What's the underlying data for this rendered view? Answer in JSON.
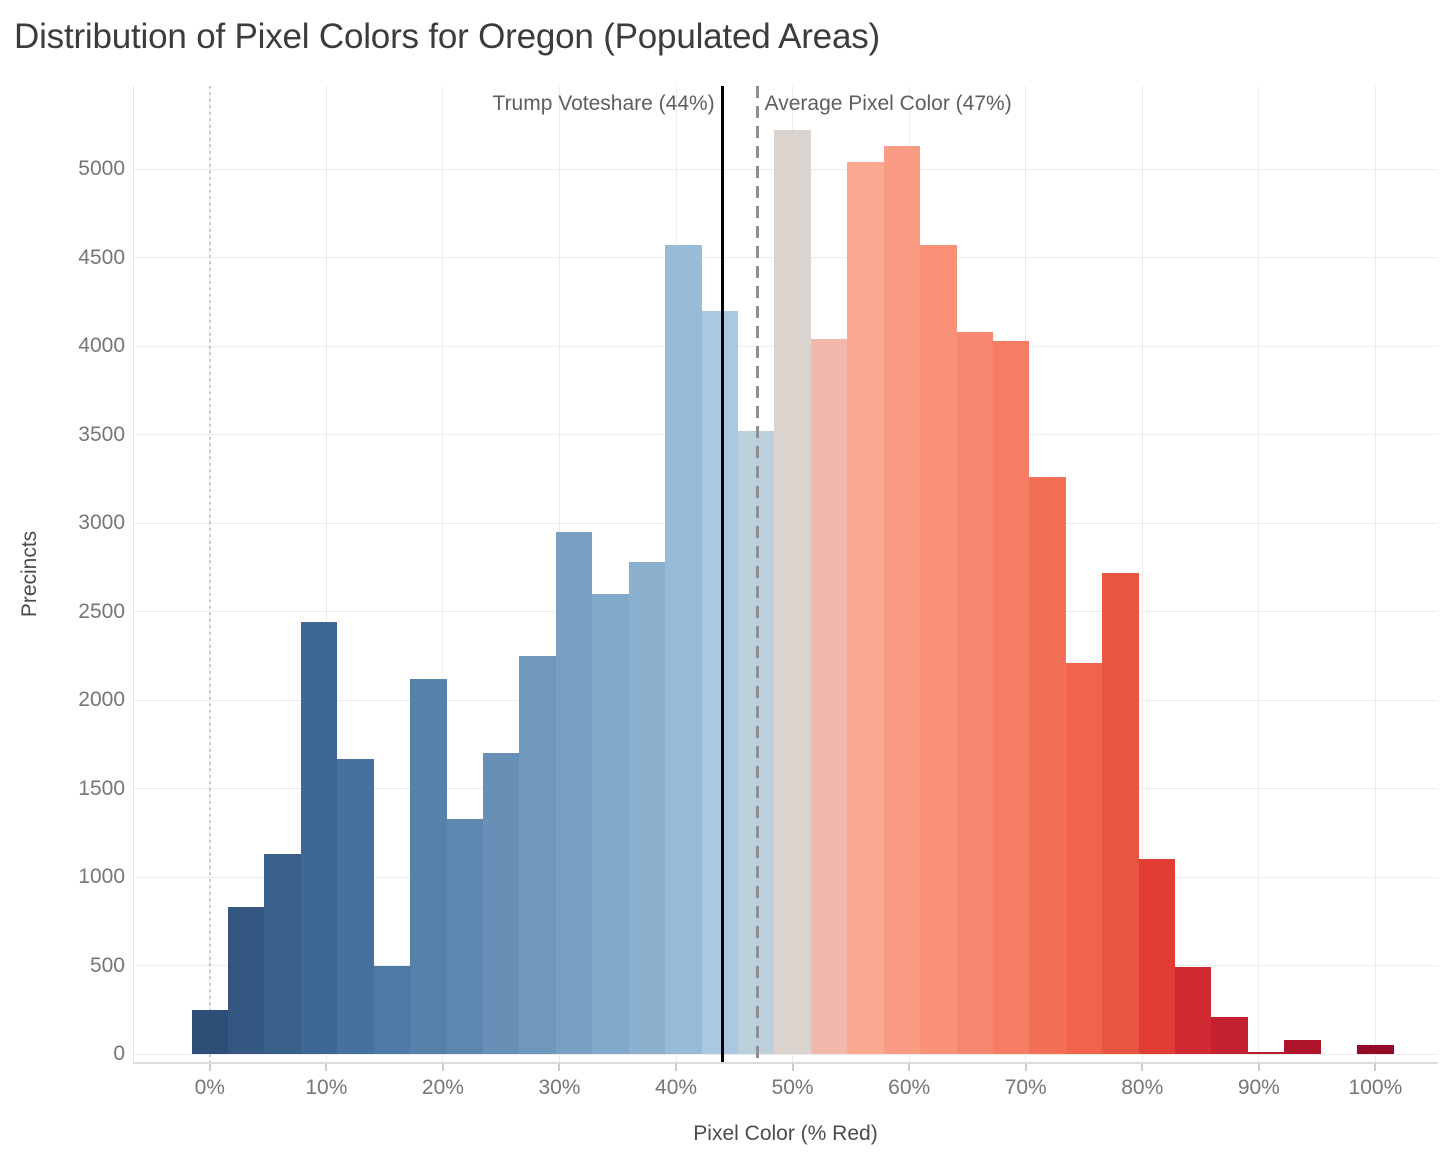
{
  "title": "Distribution of Pixel Colors for Oregon (Populated Areas)",
  "chart_data": {
    "type": "bar",
    "subtype": "histogram",
    "title": "Distribution of Pixel Colors for Oregon (Populated Areas)",
    "xlabel": "Pixel Color (% Red)",
    "ylabel": "Precincts",
    "grid": true,
    "legend": "none",
    "bin_width_pct": 3.125,
    "xlim_pct": [
      -6.6,
      105.4
    ],
    "ylim": [
      -45,
      5475
    ],
    "x_tick_labels": [
      "0%",
      "10%",
      "20%",
      "30%",
      "40%",
      "50%",
      "60%",
      "70%",
      "80%",
      "90%",
      "100%"
    ],
    "x_tick_values": [
      0,
      10,
      20,
      30,
      40,
      50,
      60,
      70,
      80,
      90,
      100
    ],
    "y_ticks": [
      0,
      500,
      1000,
      1500,
      2000,
      2500,
      3000,
      3500,
      4000,
      4500,
      5000
    ],
    "bars": [
      {
        "center_pct": 0.0,
        "count": 250,
        "color": "#2d4f77"
      },
      {
        "center_pct": 3.125,
        "count": 830,
        "color": "#335781"
      },
      {
        "center_pct": 6.25,
        "count": 1130,
        "color": "#395f8b"
      },
      {
        "center_pct": 9.375,
        "count": 2440,
        "color": "#3f6795"
      },
      {
        "center_pct": 12.5,
        "count": 1670,
        "color": "#46709d"
      },
      {
        "center_pct": 15.625,
        "count": 500,
        "color": "#4e78a5"
      },
      {
        "center_pct": 18.75,
        "count": 2120,
        "color": "#5780ab"
      },
      {
        "center_pct": 21.875,
        "count": 1330,
        "color": "#5f88b1"
      },
      {
        "center_pct": 25.0,
        "count": 1700,
        "color": "#6890b7"
      },
      {
        "center_pct": 28.125,
        "count": 2250,
        "color": "#7098bd"
      },
      {
        "center_pct": 31.25,
        "count": 2950,
        "color": "#79a0c3"
      },
      {
        "center_pct": 34.375,
        "count": 2600,
        "color": "#82a8c9"
      },
      {
        "center_pct": 37.5,
        "count": 2780,
        "color": "#8cb1cf"
      },
      {
        "center_pct": 40.625,
        "count": 4570,
        "color": "#96bcda"
      },
      {
        "center_pct": 43.75,
        "count": 4200,
        "color": "#aac8e2"
      },
      {
        "center_pct": 46.875,
        "count": 3520,
        "color": "#bccfdd"
      },
      {
        "center_pct": 50.0,
        "count": 5220,
        "color": "#dbd3ce"
      },
      {
        "center_pct": 53.125,
        "count": 4040,
        "color": "#f3b8ab"
      },
      {
        "center_pct": 56.25,
        "count": 5040,
        "color": "#f9a892"
      },
      {
        "center_pct": 59.375,
        "count": 5130,
        "color": "#fa9b84"
      },
      {
        "center_pct": 62.5,
        "count": 4570,
        "color": "#f89178"
      },
      {
        "center_pct": 65.625,
        "count": 4080,
        "color": "#f7866e"
      },
      {
        "center_pct": 68.75,
        "count": 4030,
        "color": "#f67c63"
      },
      {
        "center_pct": 71.875,
        "count": 3260,
        "color": "#f37057"
      },
      {
        "center_pct": 75.0,
        "count": 2210,
        "color": "#f0644b"
      },
      {
        "center_pct": 78.125,
        "count": 2720,
        "color": "#e95541"
      },
      {
        "center_pct": 81.25,
        "count": 1100,
        "color": "#e23d35"
      },
      {
        "center_pct": 84.375,
        "count": 490,
        "color": "#d02b32"
      },
      {
        "center_pct": 87.5,
        "count": 210,
        "color": "#c52130"
      },
      {
        "center_pct": 90.625,
        "count": 10,
        "color": "#bb1a2e"
      },
      {
        "center_pct": 93.75,
        "count": 80,
        "color": "#ae142c"
      },
      {
        "center_pct": 96.875,
        "count": 0,
        "color": "#a30e2a"
      },
      {
        "center_pct": 100.0,
        "count": 50,
        "color": "#950826"
      }
    ],
    "reference_lines": [
      {
        "id": "trump-voteshare",
        "label": "Trump Voteshare (44%)",
        "pct": 44,
        "style": "solid",
        "color": "#020202"
      },
      {
        "id": "average-pixel-color",
        "label": "Average Pixel Color (47%)",
        "pct": 47,
        "style": "dashed",
        "color": "#8f8f8f"
      },
      {
        "id": "zero-line",
        "label": "",
        "pct": 0,
        "style": "dotted",
        "color": "#c6c6c6"
      }
    ]
  }
}
